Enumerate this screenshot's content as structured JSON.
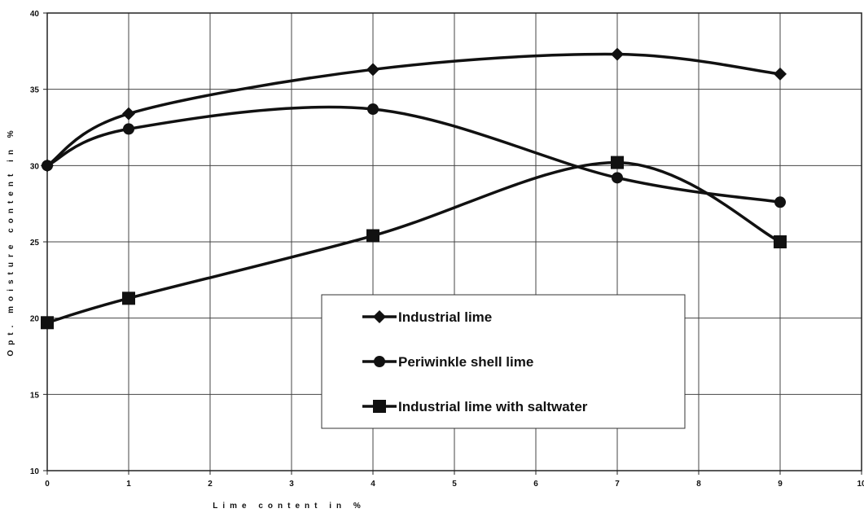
{
  "chart_data": {
    "type": "line",
    "title": "",
    "xlabel": "Lime content in %",
    "ylabel": "Opt. moisture content in %",
    "xlim": [
      0,
      10
    ],
    "ylim": [
      10,
      40
    ],
    "x_ticks": [
      "0",
      "1",
      "2",
      "3",
      "4",
      "5",
      "6",
      "7",
      "8",
      "9",
      "10"
    ],
    "y_ticks": [
      "10",
      "15",
      "20",
      "25",
      "30",
      "35",
      "40"
    ],
    "grid": true,
    "legend_position": "center-bottom",
    "series": [
      {
        "name": "Industrial lime",
        "marker": "diamond",
        "color": "#111111",
        "x": [
          0,
          1,
          4,
          7,
          9
        ],
        "y": [
          30.0,
          33.4,
          36.3,
          37.3,
          36.0
        ]
      },
      {
        "name": "Periwinkle shell lime",
        "marker": "circle",
        "color": "#111111",
        "x": [
          0,
          1,
          4,
          7,
          9
        ],
        "y": [
          30.0,
          32.4,
          33.7,
          29.2,
          27.6
        ]
      },
      {
        "name": "Industrial lime with saltwater",
        "marker": "square",
        "color": "#111111",
        "x": [
          0,
          1,
          4,
          7,
          9
        ],
        "y": [
          19.7,
          21.3,
          25.4,
          30.2,
          25.0
        ]
      }
    ]
  }
}
